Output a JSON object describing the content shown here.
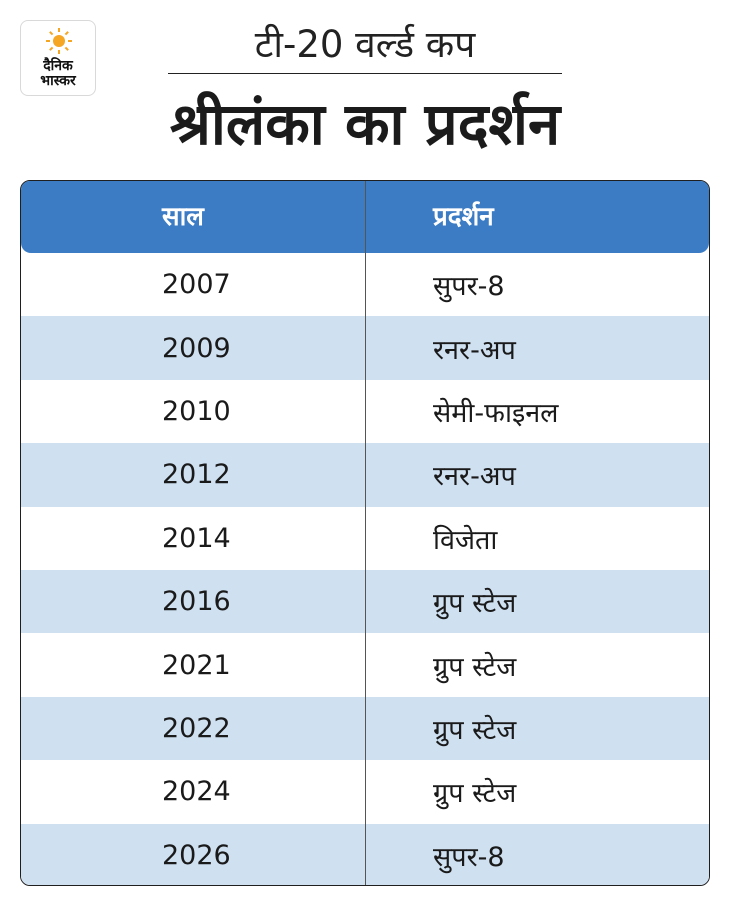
{
  "logo": {
    "line1": "दैनिक",
    "line2": "भास्कर",
    "sun_color": "#f5a623"
  },
  "header": {
    "subtitle": "टी-20 वर्ल्ड कप",
    "title": "श्रीलंका का प्रदर्शन"
  },
  "table": {
    "columns": [
      "साल",
      "प्रदर्शन"
    ],
    "rows": [
      {
        "year": "2007",
        "result": "सुपर-8"
      },
      {
        "year": "2009",
        "result": "रनर-अप"
      },
      {
        "year": "2010",
        "result": "सेमी-फाइनल"
      },
      {
        "year": "2012",
        "result": "रनर-अप"
      },
      {
        "year": "2014",
        "result": "विजेता"
      },
      {
        "year": "2016",
        "result": "ग्रुप स्टेज"
      },
      {
        "year": "2021",
        "result": "ग्रुप स्टेज"
      },
      {
        "year": "2022",
        "result": "ग्रुप स्टेज"
      },
      {
        "year": "2024",
        "result": "ग्रुप स्टेज"
      },
      {
        "year": "2026",
        "result": "सुपर-8"
      }
    ]
  },
  "colors": {
    "header_bg": "#3b7cc4",
    "stripe_bg": "#cfe0f1"
  }
}
